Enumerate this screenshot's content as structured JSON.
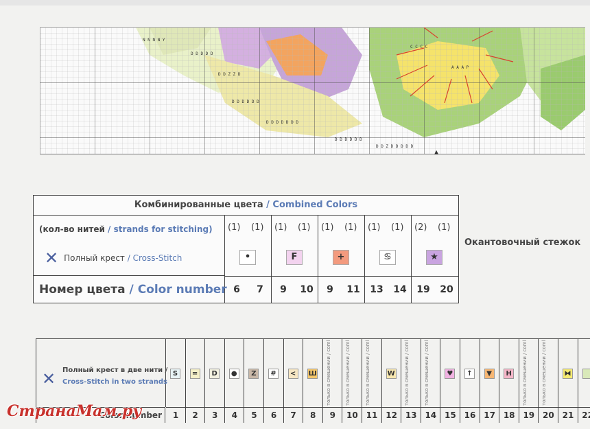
{
  "combined_colors": {
    "title_ru": "Комбинированные цвета",
    "title_sep": " / ",
    "title_en": "Combined Colors",
    "strands_label_ru": "(кол-во нитей",
    "strands_sep": " / ",
    "strands_label_en": "strands for stitching)",
    "stitch_label_ru": "Полный крест",
    "stitch_sep": " / ",
    "stitch_label_en": "Cross-Stitch",
    "number_label_ru": "Номер цвета",
    "number_sep": " / ",
    "number_label_en": "Color number",
    "groups": [
      {
        "strands": [
          "(1)",
          "(1)"
        ],
        "symbol": "•",
        "symbol_bg": "#ffffff",
        "numbers": [
          "6",
          "7"
        ]
      },
      {
        "strands": [
          "(1)",
          "(1)"
        ],
        "symbol": "F",
        "symbol_bg": "#f3d3ef",
        "numbers": [
          "9",
          "10"
        ]
      },
      {
        "strands": [
          "(1)",
          "(1)"
        ],
        "symbol": "+",
        "symbol_bg": "#f39a7e",
        "numbers": [
          "9",
          "11"
        ]
      },
      {
        "strands": [
          "(1)",
          "(1)"
        ],
        "symbol": "♋",
        "symbol_bg": "#ffffff",
        "numbers": [
          "13",
          "14"
        ]
      },
      {
        "strands": [
          "(2)",
          "(1)"
        ],
        "symbol": "★",
        "symbol_bg": "#c9a4e0",
        "numbers": [
          "19",
          "20"
        ]
      }
    ]
  },
  "backstitch_label": "Окантовочный стежок",
  "single_colors": {
    "label_ru": "Полный крест в две нити /",
    "label_en": "Cross-Stitch in two strands",
    "number_label": "Color number",
    "only_text": "только в смешении / combined colors only",
    "columns": [
      {
        "num": "1",
        "symbol": "S",
        "bg": "#e8f4f6"
      },
      {
        "num": "2",
        "symbol": "=",
        "bg": "#f5f0c8"
      },
      {
        "num": "3",
        "symbol": "D",
        "bg": "#f3f1e0"
      },
      {
        "num": "4",
        "symbol": "●",
        "bg": "#ffffff"
      },
      {
        "num": "5",
        "symbol": "Z",
        "bg": "#c9b8a8"
      },
      {
        "num": "6",
        "symbol": "#",
        "bg": "#ffffff"
      },
      {
        "num": "7",
        "symbol": "<",
        "bg": "#f7e7c4"
      },
      {
        "num": "8",
        "symbol": "Ш",
        "bg": "#f6c86b"
      },
      {
        "num": "9",
        "symbol": "",
        "bg": "",
        "only": true
      },
      {
        "num": "10",
        "symbol": "",
        "bg": "",
        "only": true
      },
      {
        "num": "11",
        "symbol": "",
        "bg": "",
        "only": true
      },
      {
        "num": "12",
        "symbol": "W",
        "bg": "#f7e7b0"
      },
      {
        "num": "13",
        "symbol": "",
        "bg": "",
        "only": true
      },
      {
        "num": "14",
        "symbol": "",
        "bg": "",
        "only": true
      },
      {
        "num": "15",
        "symbol": "♥",
        "bg": "#f1b2e2"
      },
      {
        "num": "16",
        "symbol": "↑",
        "bg": "#ffffff"
      },
      {
        "num": "17",
        "symbol": "▼",
        "bg": "#f7b774"
      },
      {
        "num": "18",
        "symbol": "H",
        "bg": "#f5b6c8"
      },
      {
        "num": "19",
        "symbol": "",
        "bg": "",
        "only": true
      },
      {
        "num": "20",
        "symbol": "",
        "bg": "",
        "only": true
      },
      {
        "num": "21",
        "symbol": "⧓",
        "bg": "#f5ea72"
      },
      {
        "num": "22",
        "symbol": "",
        "bg": "#d9e9b9"
      }
    ]
  },
  "watermark": "СтранаМам.ру"
}
